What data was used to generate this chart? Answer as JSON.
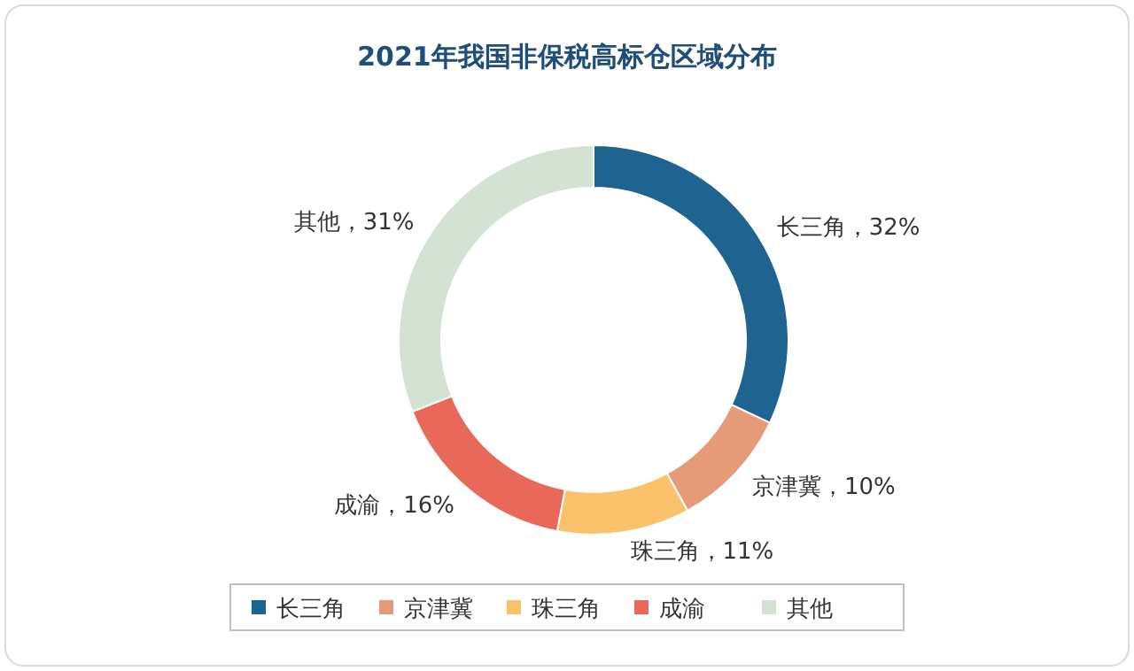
{
  "chart_data": {
    "type": "donut",
    "title": "2021年我国非保税高标仓区域分布",
    "categories": [
      "长三角",
      "京津冀",
      "珠三角",
      "成渝",
      "其他"
    ],
    "values": [
      32,
      10,
      11,
      16,
      31
    ],
    "colors": [
      "#1f6391",
      "#e59a78",
      "#fbc26c",
      "#e8695a",
      "#d3e2d3"
    ],
    "value_labels": [
      "长三角，32%",
      "京津冀，10%",
      "珠三角，11%",
      "成渝，16%",
      "其他，31%"
    ],
    "legend": "bottom"
  }
}
